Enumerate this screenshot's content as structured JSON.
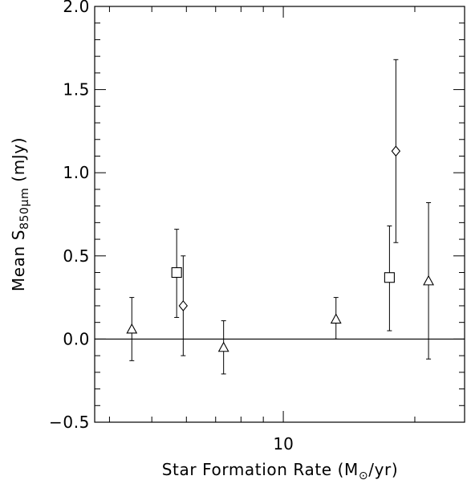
{
  "chart_data": {
    "type": "scatter",
    "xscale": "log",
    "xlim": [
      3.7,
      26
    ],
    "ylim": [
      -0.5,
      2.0
    ],
    "xlabel": "Star Formation Rate (M",
    "xlabel_sub": "⊙",
    "xlabel_tail": "/yr)",
    "ylabel": "Mean S",
    "ylabel_sub": "850μm",
    "ylabel_tail": "  (mJy)",
    "x_ticks": [
      {
        "value": 10,
        "label": "10"
      }
    ],
    "y_ticks": [
      {
        "value": -0.5,
        "label": "−0.5"
      },
      {
        "value": 0.0,
        "label": "0.0"
      },
      {
        "value": 0.5,
        "label": "0.5"
      },
      {
        "value": 1.0,
        "label": "1.0"
      },
      {
        "value": 1.5,
        "label": "1.5"
      },
      {
        "value": 2.0,
        "label": "2.0"
      }
    ],
    "y_minor_step": 0.1,
    "x_minor_ticks": [
      4,
      5,
      6,
      7,
      8,
      9,
      20
    ],
    "reference_line_y": 0.0,
    "grid": false,
    "series": [
      {
        "marker": "triangle",
        "points": [
          {
            "x": 4.5,
            "y": 0.06,
            "ylo": -0.13,
            "yhi": 0.25
          },
          {
            "x": 7.3,
            "y": -0.05,
            "ylo": -0.21,
            "yhi": 0.11
          },
          {
            "x": 13.2,
            "y": 0.12,
            "ylo": 0.0,
            "yhi": 0.25
          },
          {
            "x": 21.5,
            "y": 0.35,
            "ylo": -0.12,
            "yhi": 0.82
          }
        ]
      },
      {
        "marker": "square",
        "points": [
          {
            "x": 5.7,
            "y": 0.4,
            "ylo": 0.13,
            "yhi": 0.66
          },
          {
            "x": 17.5,
            "y": 0.37,
            "ylo": 0.05,
            "yhi": 0.68
          }
        ]
      },
      {
        "marker": "diamond",
        "points": [
          {
            "x": 5.9,
            "y": 0.2,
            "ylo": -0.1,
            "yhi": 0.5
          },
          {
            "x": 18.1,
            "y": 1.13,
            "ylo": 0.58,
            "yhi": 1.68
          }
        ]
      }
    ]
  }
}
